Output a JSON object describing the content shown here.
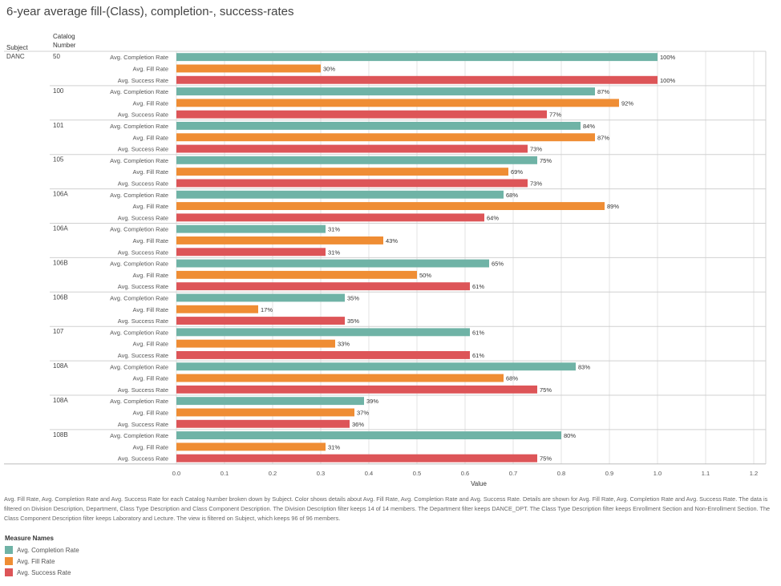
{
  "title": "6-year average fill-(Class), completion-, success-rates",
  "header": {
    "subject": "Subject",
    "catalog_line1": "Catalog",
    "catalog_line2": "Number"
  },
  "subject_value": "DANC",
  "colors": {
    "completion": "#6fb3a6",
    "fill": "#ef8d34",
    "success": "#dd5558",
    "grid": "#e3e3e3",
    "separator": "#d0d0d0"
  },
  "chart_data": {
    "type": "bar",
    "orientation": "horizontal",
    "measures": [
      "Avg. Completion Rate",
      "Avg. Fill Rate",
      "Avg. Success Rate"
    ],
    "xlabel": "Value",
    "xlim": [
      0,
      1.2
    ],
    "x_ticks": [
      "0.0",
      "0.1",
      "0.2",
      "0.3",
      "0.4",
      "0.5",
      "0.6",
      "0.7",
      "0.8",
      "0.9",
      "1.0",
      "1.1",
      "1.2"
    ],
    "grid": true,
    "groups": [
      {
        "subject": "DANC",
        "catalog": "50",
        "values": [
          1.0,
          0.3,
          1.0
        ],
        "labels": [
          "100%",
          "30%",
          "100%"
        ]
      },
      {
        "subject": "DANC",
        "catalog": "100",
        "values": [
          0.87,
          0.92,
          0.77
        ],
        "labels": [
          "87%",
          "92%",
          "77%"
        ]
      },
      {
        "subject": "DANC",
        "catalog": "101",
        "values": [
          0.84,
          0.87,
          0.73
        ],
        "labels": [
          "84%",
          "87%",
          "73%"
        ]
      },
      {
        "subject": "DANC",
        "catalog": "105",
        "values": [
          0.75,
          0.69,
          0.73
        ],
        "labels": [
          "75%",
          "69%",
          "73%"
        ]
      },
      {
        "subject": "DANC",
        "catalog": "106A",
        "values": [
          0.68,
          0.89,
          0.64
        ],
        "labels": [
          "68%",
          "89%",
          "64%"
        ]
      },
      {
        "subject": "DANC",
        "catalog": "106A",
        "values": [
          0.31,
          0.43,
          0.31
        ],
        "labels": [
          "31%",
          "43%",
          "31%"
        ]
      },
      {
        "subject": "DANC",
        "catalog": "106B",
        "values": [
          0.65,
          0.5,
          0.61
        ],
        "labels": [
          "65%",
          "50%",
          "61%"
        ]
      },
      {
        "subject": "DANC",
        "catalog": "106B",
        "values": [
          0.35,
          0.17,
          0.35
        ],
        "labels": [
          "35%",
          "17%",
          "35%"
        ]
      },
      {
        "subject": "DANC",
        "catalog": "107",
        "values": [
          0.61,
          0.33,
          0.61
        ],
        "labels": [
          "61%",
          "33%",
          "61%"
        ]
      },
      {
        "subject": "DANC",
        "catalog": "108A",
        "values": [
          0.83,
          0.68,
          0.75
        ],
        "labels": [
          "83%",
          "68%",
          "75%"
        ]
      },
      {
        "subject": "DANC",
        "catalog": "108A",
        "values": [
          0.39,
          0.37,
          0.36
        ],
        "labels": [
          "39%",
          "37%",
          "36%"
        ]
      },
      {
        "subject": "DANC",
        "catalog": "108B",
        "values": [
          0.8,
          0.31,
          0.75
        ],
        "labels": [
          "80%",
          "31%",
          "75%"
        ]
      }
    ]
  },
  "caption": "Avg. Fill Rate, Avg. Completion Rate and Avg. Success Rate for each Catalog Number broken down by Subject.  Color shows details about Avg. Fill Rate, Avg. Completion Rate and Avg. Success Rate.  Details are shown for Avg. Fill Rate, Avg. Completion Rate and Avg. Success Rate. The data is filtered on Division Description, Department, Class Type Description and Class Component Description. The Division Description filter keeps 14 of 14 members. The Department filter keeps DANCE_DPT. The Class Type Description filter keeps Enrollment Section and Non-Enrollment Section. The Class Component Description filter keeps Laboratory and Lecture. The view is filtered on Subject, which keeps 96 of 96 members.",
  "legend": {
    "title": "Measure Names",
    "items": [
      {
        "label": "Avg. Completion Rate",
        "color": "#6fb3a6"
      },
      {
        "label": "Avg. Fill Rate",
        "color": "#ef8d34"
      },
      {
        "label": "Avg. Success Rate",
        "color": "#dd5558"
      }
    ]
  }
}
